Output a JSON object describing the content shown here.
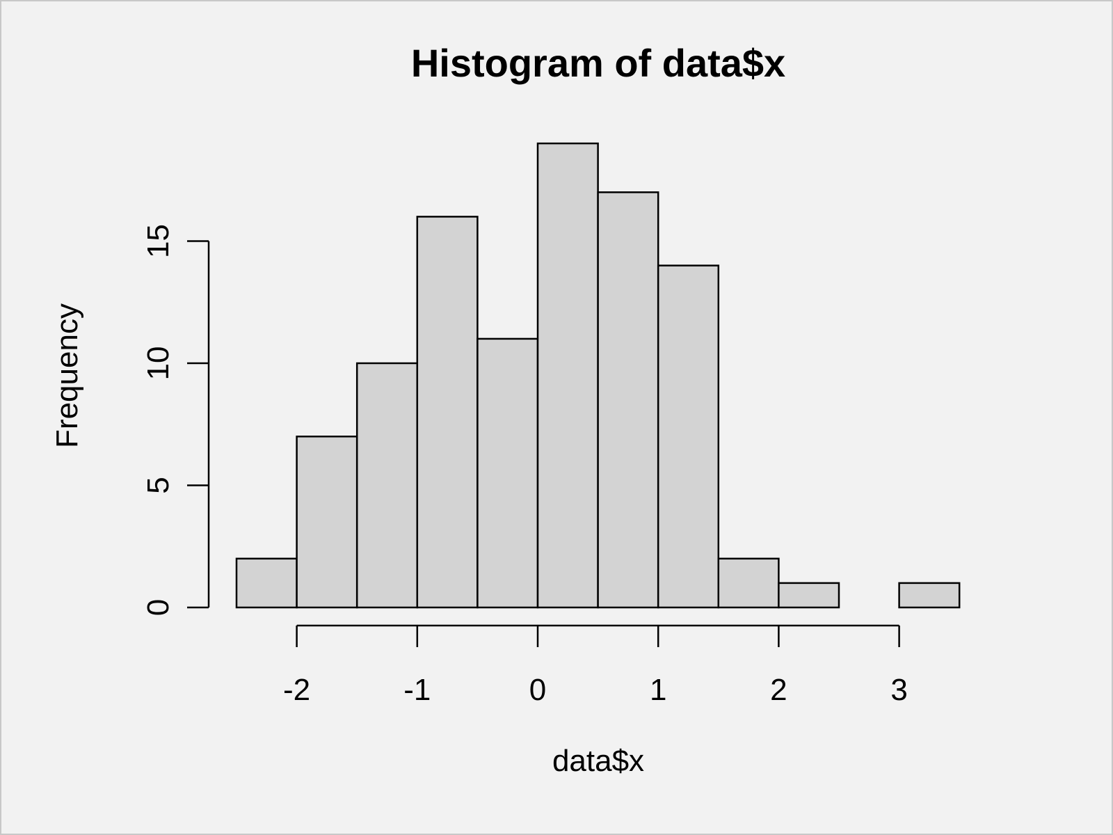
{
  "chart_data": {
    "type": "bar",
    "title": "Histogram of data$x",
    "xlabel": "data$x",
    "ylabel": "Frequency",
    "bins": [
      {
        "from": -2.5,
        "to": -2.0,
        "count": 2
      },
      {
        "from": -2.0,
        "to": -1.5,
        "count": 7
      },
      {
        "from": -1.5,
        "to": -1.0,
        "count": 10
      },
      {
        "from": -1.0,
        "to": -0.5,
        "count": 16
      },
      {
        "from": -0.5,
        "to": 0.0,
        "count": 11
      },
      {
        "from": 0.0,
        "to": 0.5,
        "count": 19
      },
      {
        "from": 0.5,
        "to": 1.0,
        "count": 17
      },
      {
        "from": 1.0,
        "to": 1.5,
        "count": 14
      },
      {
        "from": 1.5,
        "to": 2.0,
        "count": 2
      },
      {
        "from": 2.0,
        "to": 2.5,
        "count": 1
      },
      {
        "from": 2.5,
        "to": 3.0,
        "count": 0
      },
      {
        "from": 3.0,
        "to": 3.5,
        "count": 1
      }
    ],
    "xlim": [
      -2.5,
      3.5
    ],
    "ylim": [
      0,
      19
    ],
    "x_ticks": [
      {
        "value": -2,
        "label": "-2"
      },
      {
        "value": -1,
        "label": "-1"
      },
      {
        "value": 0,
        "label": "0"
      },
      {
        "value": 1,
        "label": "1"
      },
      {
        "value": 2,
        "label": "2"
      },
      {
        "value": 3,
        "label": "3"
      }
    ],
    "y_ticks": [
      {
        "value": 0,
        "label": "0"
      },
      {
        "value": 5,
        "label": "5"
      },
      {
        "value": 10,
        "label": "10"
      },
      {
        "value": 15,
        "label": "15"
      }
    ],
    "grid": false,
    "colors": {
      "background": "#f2f2f2",
      "bar_fill": "#d3d3d3",
      "bar_stroke": "#000000"
    }
  }
}
